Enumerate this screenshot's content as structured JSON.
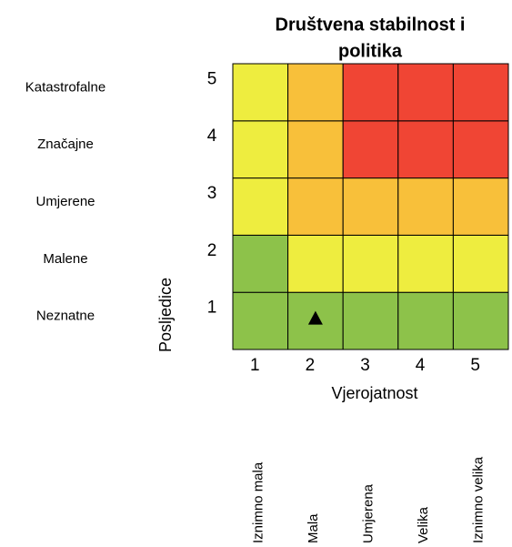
{
  "chart_data": {
    "type": "heatmap",
    "title": [
      "Društvena stabilnost i",
      "politika"
    ],
    "xlabel": "Vjerojatnost",
    "ylabel": "Posljedice",
    "xlim": [
      0.5,
      5.5
    ],
    "ylim": [
      0.5,
      5.5
    ],
    "xticks": [
      1,
      2,
      3,
      4,
      5
    ],
    "yticks": [
      1,
      2,
      3,
      4,
      5
    ],
    "row_labels": [
      "Neznatne",
      "Malene",
      "Umjerene",
      "Značajne",
      "Katastrofalne"
    ],
    "column_labels": [
      "Iznimno mala",
      "Mala",
      "Umjerena",
      "Velika",
      "Iznimno velika"
    ],
    "cell_colors": [
      [
        "#8dc24a",
        "#8dc24a",
        "#8dc24a",
        "#8dc24a",
        "#8dc24a"
      ],
      [
        "#8dc24a",
        "#eeed3f",
        "#eeed3f",
        "#eeed3f",
        "#eeed3f"
      ],
      [
        "#eeed3f",
        "#f8c03a",
        "#f8c03a",
        "#f8c03a",
        "#f8c03a"
      ],
      [
        "#eeed3f",
        "#f8c03a",
        "#f04534",
        "#f04534",
        "#f04534"
      ],
      [
        "#eeed3f",
        "#f8c03a",
        "#f04534",
        "#f04534",
        "#f04534"
      ]
    ],
    "marker": {
      "x": 2,
      "y": 1,
      "color": "#000000"
    }
  }
}
